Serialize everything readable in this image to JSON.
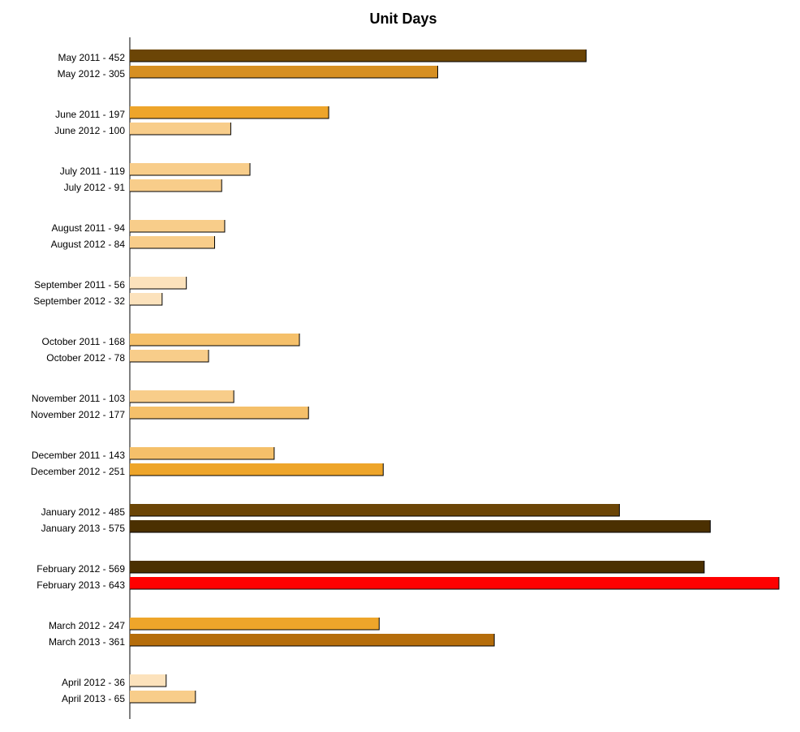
{
  "chart_data": {
    "type": "bar",
    "orientation": "horizontal",
    "title": "Unit Days",
    "xlabel": "",
    "ylabel": "",
    "grid": false,
    "xlim": [
      0,
      643
    ],
    "bars": [
      {
        "label": "May 2011 - 452",
        "value": 452,
        "color": "#6b4506"
      },
      {
        "label": "May 2012 - 305",
        "value": 305,
        "color": "#d68f22"
      },
      {
        "label": "June 2011 - 197",
        "value": 197,
        "color": "#eea52a"
      },
      {
        "label": "June 2012 - 100",
        "value": 100,
        "color": "#f8cd8a"
      },
      {
        "label": "July 2011 - 119",
        "value": 119,
        "color": "#f8cd8a"
      },
      {
        "label": "July 2012 - 91",
        "value": 91,
        "color": "#f8cd8a"
      },
      {
        "label": "August 2011 - 94",
        "value": 94,
        "color": "#f8cd8a"
      },
      {
        "label": "August 2012 - 84",
        "value": 84,
        "color": "#f8cd8a"
      },
      {
        "label": "September 2011 - 56",
        "value": 56,
        "color": "#fce2bc"
      },
      {
        "label": "September 2012 - 32",
        "value": 32,
        "color": "#fce2bc"
      },
      {
        "label": "October 2011 - 168",
        "value": 168,
        "color": "#f5c06a"
      },
      {
        "label": "October 2012 - 78",
        "value": 78,
        "color": "#f8cd8a"
      },
      {
        "label": "November 2011 - 103",
        "value": 103,
        "color": "#f8cd8a"
      },
      {
        "label": "November 2012 - 177",
        "value": 177,
        "color": "#f5c06a"
      },
      {
        "label": "December 2011 - 143",
        "value": 143,
        "color": "#f5c06a"
      },
      {
        "label": "December 2012 - 251",
        "value": 251,
        "color": "#eea52a"
      },
      {
        "label": "January 2012 - 485",
        "value": 485,
        "color": "#6b4506"
      },
      {
        "label": "January 2013 - 575",
        "value": 575,
        "color": "#4b3001"
      },
      {
        "label": "February 2012 - 569",
        "value": 569,
        "color": "#4b3001"
      },
      {
        "label": "February 2013 - 643",
        "value": 643,
        "color": "#ff0000"
      },
      {
        "label": "March 2012 - 247",
        "value": 247,
        "color": "#eea52a"
      },
      {
        "label": "March 2013 - 361",
        "value": 361,
        "color": "#b56d0b"
      },
      {
        "label": "April 2012 - 36",
        "value": 36,
        "color": "#fce2bc"
      },
      {
        "label": "April 2013 - 65",
        "value": 65,
        "color": "#f8cd8a"
      }
    ]
  }
}
